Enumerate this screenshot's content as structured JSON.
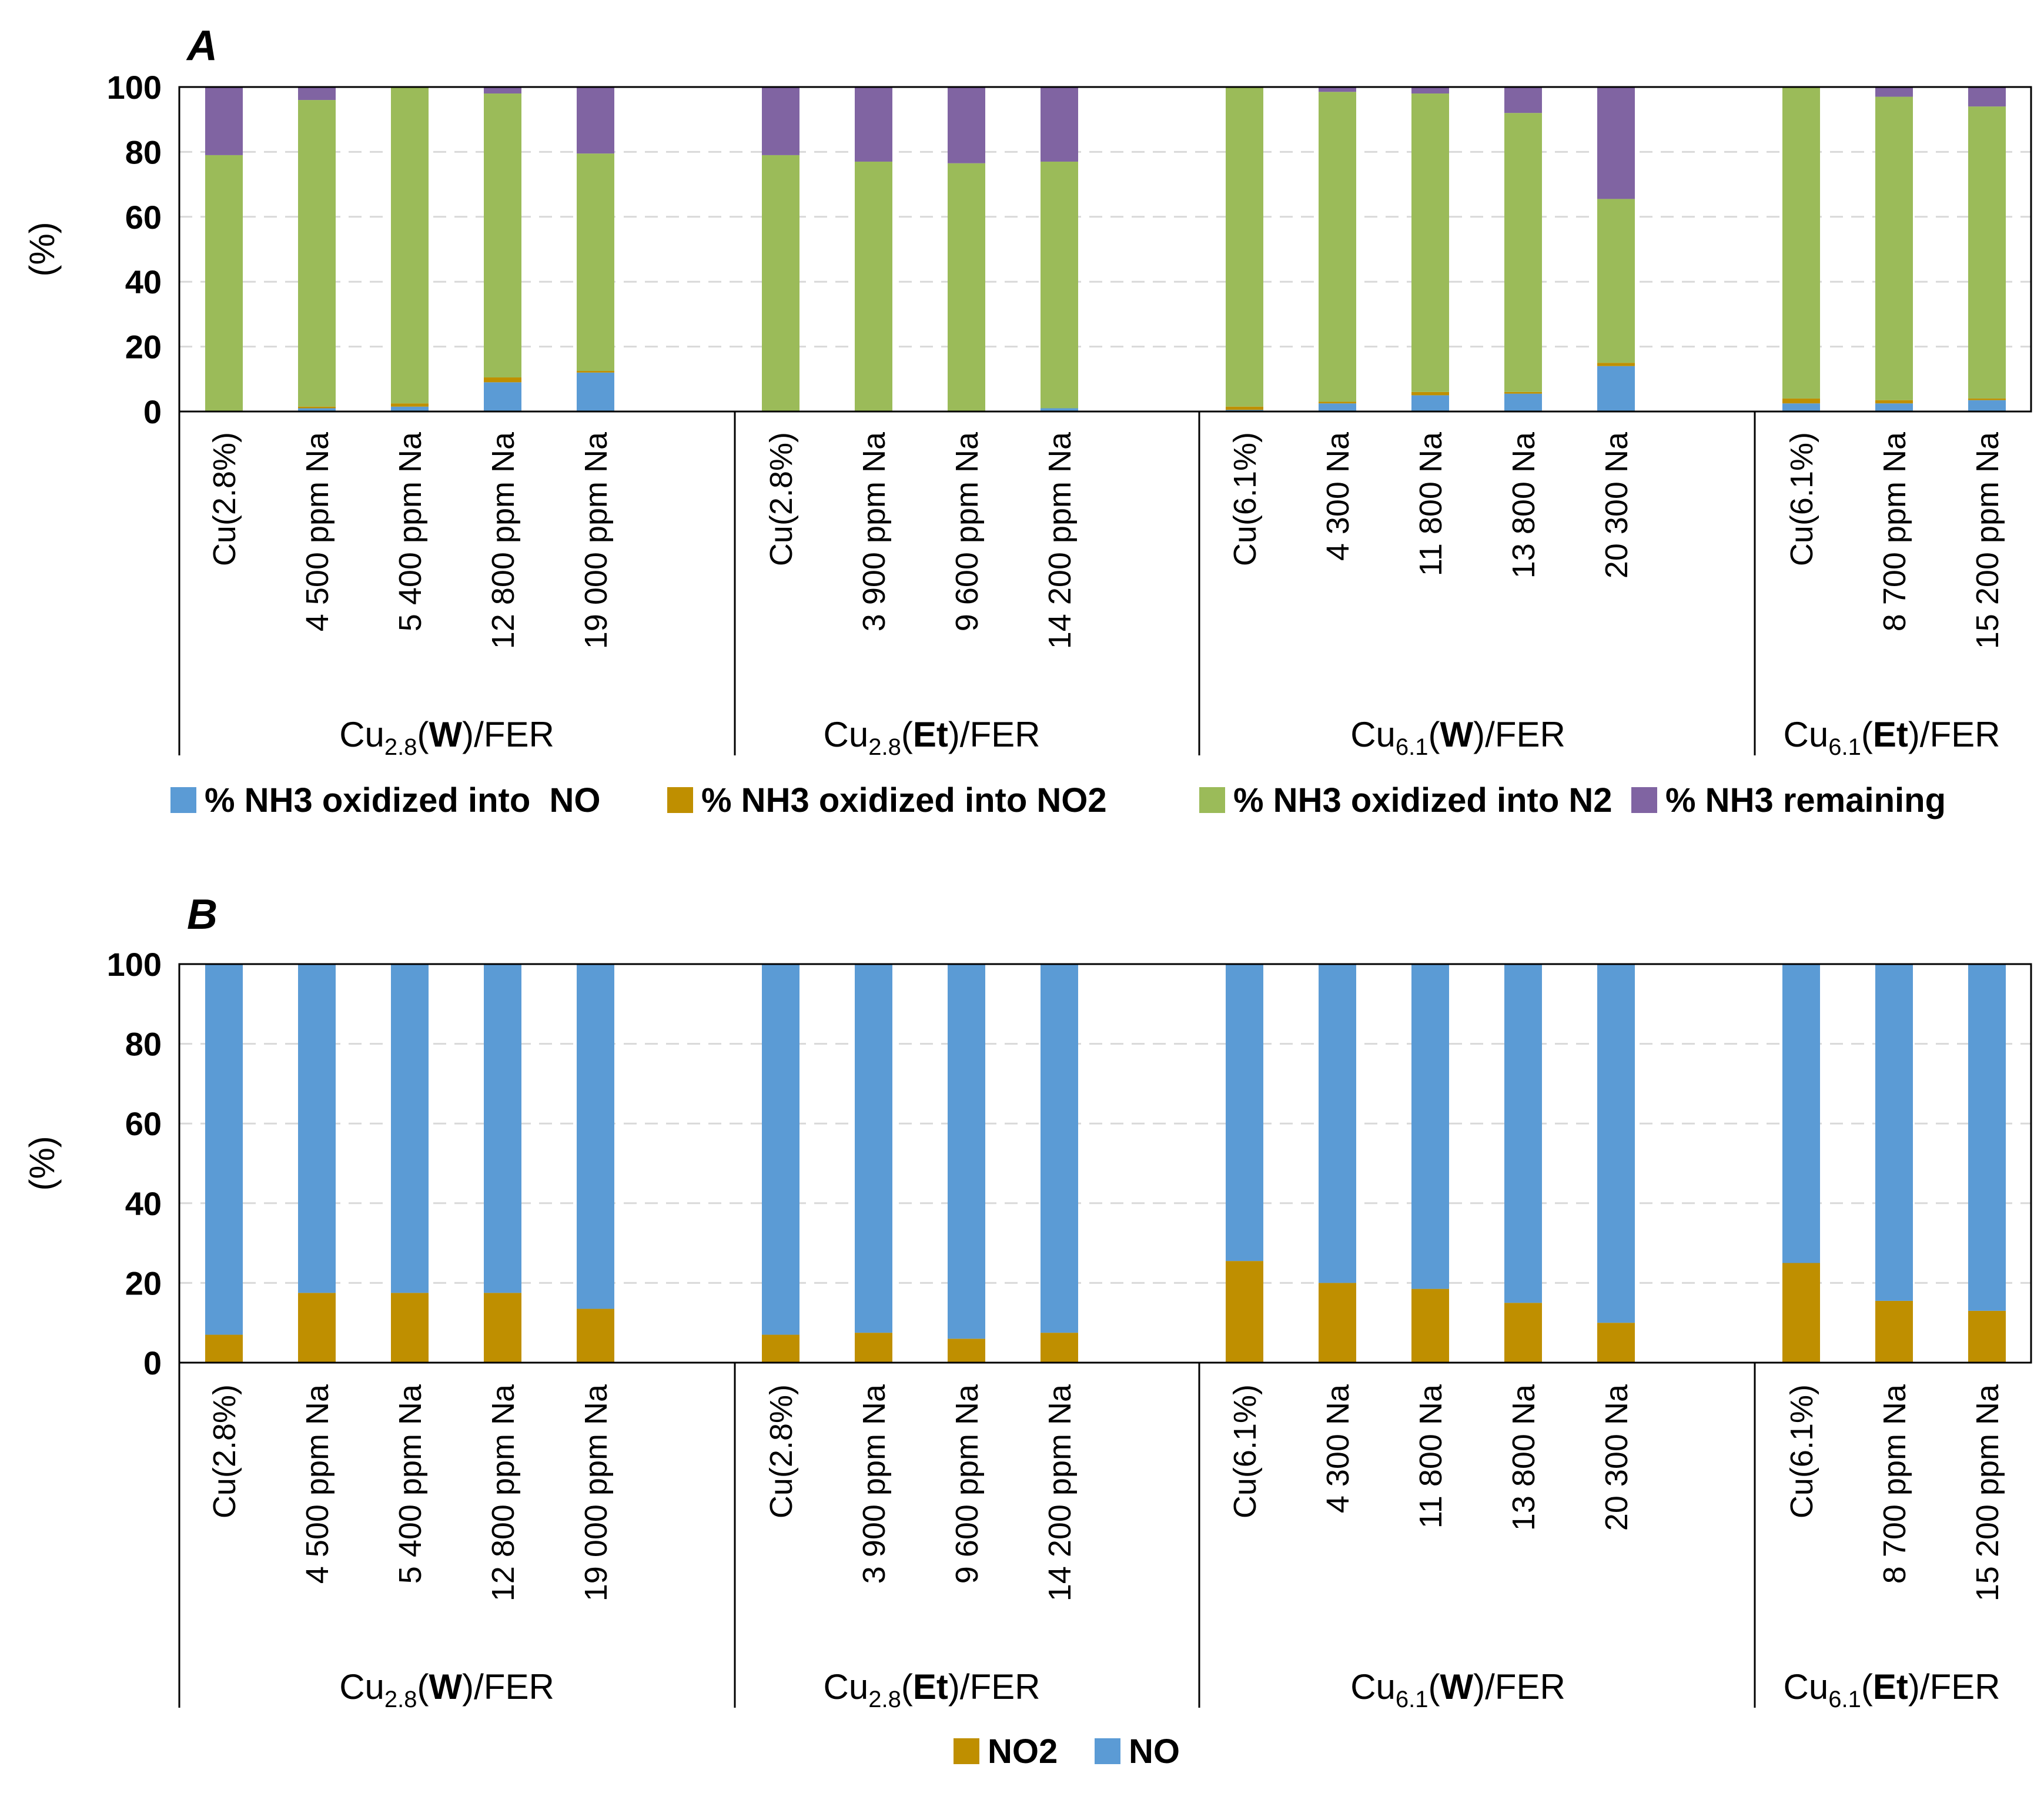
{
  "colors": {
    "NO": "#5b9bd5",
    "NO2": "#bf8f00",
    "N2": "#9bbb59",
    "remaining": "#8064a2"
  },
  "chart_data": [
    {
      "type": "bar",
      "stacked": true,
      "panel": "A",
      "ylabel": "(%)",
      "ylim": [
        0,
        100
      ],
      "yticks": [
        "0",
        "20",
        "40",
        "60",
        "80",
        "100"
      ],
      "grid": true,
      "legend_position": "bottom",
      "groups": [
        {
          "name": {
            "base": "Cu",
            "sub": "2.8",
            "bold": "W",
            "suffix": "/FER"
          },
          "categories": [
            "Cu(2.8%)",
            "4 500 ppm Na",
            "5 400 ppm Na",
            "12 800 ppm Na",
            "19 000 ppm Na"
          ]
        },
        {
          "name": {
            "base": "Cu",
            "sub": "2.8",
            "bold": "Et",
            "suffix": "/FER"
          },
          "categories": [
            "Cu(2.8%)",
            "3 900 ppm Na",
            "9 600 ppm Na",
            "14 200 ppm Na"
          ]
        },
        {
          "name": {
            "base": "Cu",
            "sub": "6.1",
            "bold": "W",
            "suffix": "/FER"
          },
          "categories": [
            "Cu(6.1%)",
            "4 300 Na",
            "11 800 Na",
            "13 800 Na",
            "20 300 Na"
          ]
        },
        {
          "name": {
            "base": "Cu",
            "sub": "6.1",
            "bold": "Et",
            "suffix": "/FER"
          },
          "categories": [
            "Cu(6.1%)",
            "8 700 ppm Na",
            "15 200 ppm Na"
          ]
        }
      ],
      "series": [
        {
          "name": "% NH3 oxidized into  NO",
          "color_key": "NO",
          "values": [
            0,
            1,
            1.5,
            9,
            12,
            0,
            0,
            0,
            1,
            0.5,
            2.5,
            5,
            5.5,
            14,
            2.5,
            2.5,
            3.5
          ]
        },
        {
          "name": "% NH3 oxidized into NO2",
          "color_key": "NO2",
          "values": [
            0,
            0.5,
            1,
            1.5,
            0.5,
            0,
            0,
            0,
            0,
            1,
            0.5,
            1,
            0.5,
            1,
            1.5,
            1,
            0.5
          ]
        },
        {
          "name": "% NH3 oxidized into N2",
          "color_key": "N2",
          "values": [
            79,
            94.5,
            97.5,
            87.5,
            67,
            79,
            77,
            76.5,
            76,
            98.5,
            95.5,
            92,
            86,
            50.5,
            96,
            93.5,
            90
          ]
        },
        {
          "name": "% NH3 remaining",
          "color_key": "remaining",
          "values": [
            21,
            4,
            0,
            2,
            20.5,
            21,
            23,
            23.5,
            23,
            0,
            1.5,
            2,
            8,
            34.5,
            0,
            3,
            6
          ]
        }
      ]
    },
    {
      "type": "bar",
      "stacked": true,
      "panel": "B",
      "ylabel": "(%)",
      "ylim": [
        0,
        100
      ],
      "yticks": [
        "0",
        "20",
        "40",
        "60",
        "80",
        "100"
      ],
      "grid": true,
      "legend_position": "bottom",
      "groups": [
        {
          "name": {
            "base": "Cu",
            "sub": "2.8",
            "bold": "W",
            "suffix": "/FER"
          },
          "categories": [
            "Cu(2.8%)",
            "4 500 ppm Na",
            "5 400 ppm Na",
            "12 800 ppm Na",
            "19 000 ppm Na"
          ]
        },
        {
          "name": {
            "base": "Cu",
            "sub": "2.8",
            "bold": "Et",
            "suffix": "/FER"
          },
          "categories": [
            "Cu(2.8%)",
            "3 900 ppm Na",
            "9 600 ppm Na",
            "14 200 ppm Na"
          ]
        },
        {
          "name": {
            "base": "Cu",
            "sub": "6.1",
            "bold": "W",
            "suffix": "/FER"
          },
          "categories": [
            "Cu(6.1%)",
            "4 300 Na",
            "11 800 Na",
            "13 800 Na",
            "20 300 Na"
          ]
        },
        {
          "name": {
            "base": "Cu",
            "sub": "6.1",
            "bold": "Et",
            "suffix": "/FER"
          },
          "categories": [
            "Cu(6.1%)",
            "8 700 ppm Na",
            "15 200 ppm Na"
          ]
        }
      ],
      "series": [
        {
          "name": "NO2",
          "color_key": "NO2",
          "values": [
            7,
            17.5,
            17.5,
            17.5,
            13.5,
            7,
            7.5,
            6,
            7.5,
            25.5,
            20,
            18.5,
            15,
            10,
            25,
            15.5,
            13
          ]
        },
        {
          "name": "NO",
          "color_key": "NO",
          "values": [
            93,
            82.5,
            82.5,
            82.5,
            86.5,
            93,
            92.5,
            94,
            92.5,
            74.5,
            80,
            81.5,
            85,
            90,
            75,
            84.5,
            87
          ]
        }
      ]
    }
  ]
}
